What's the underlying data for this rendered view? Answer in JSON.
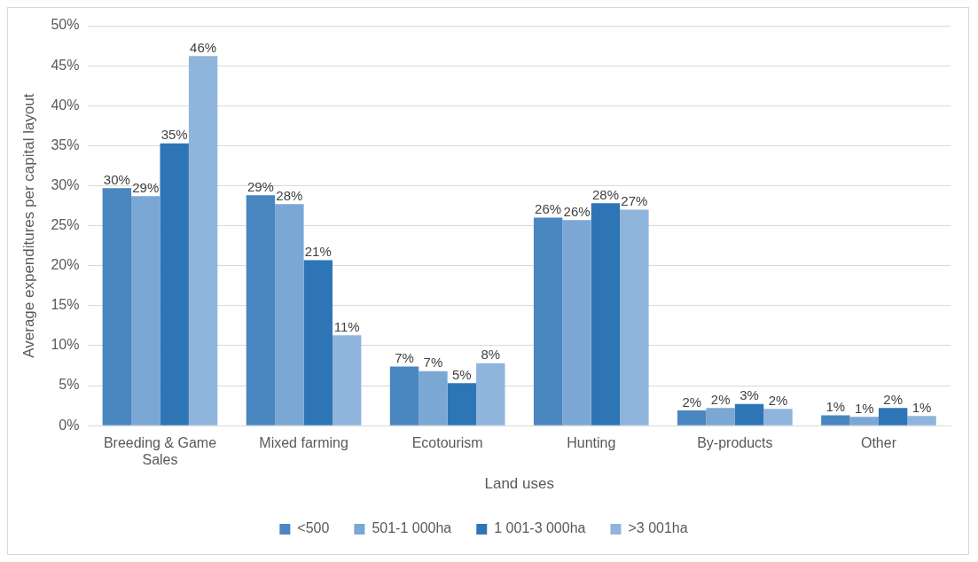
{
  "chart_data": {
    "type": "bar",
    "xlabel": "Land uses",
    "ylabel": "Average expenditures per capital layout",
    "categories": [
      "Breeding & Game Sales",
      "Mixed farming",
      "Ecotourism",
      "Hunting",
      "By-products",
      "Other"
    ],
    "series": [
      {
        "name": "<500",
        "color": "#4a86c0",
        "values": [
          29.7,
          28.8,
          7.4,
          26.0,
          1.9,
          1.3
        ],
        "value_labels": [
          "30%",
          "29%",
          "7%",
          "26%",
          "2%",
          "1%"
        ]
      },
      {
        "name": "501-1 000ha",
        "color": "#7aa7d4",
        "values": [
          28.7,
          27.7,
          6.8,
          25.7,
          2.2,
          1.1
        ],
        "value_labels": [
          "29%",
          "28%",
          "7%",
          "26%",
          "2%",
          "1%"
        ]
      },
      {
        "name": "1 001-3 000ha",
        "color": "#2e75b6",
        "values": [
          35.3,
          20.7,
          5.3,
          27.8,
          2.7,
          2.2
        ],
        "value_labels": [
          "35%",
          "21%",
          "5%",
          "28%",
          "3%",
          "2%"
        ]
      },
      {
        "name": ">3 001ha",
        "color": "#8fb5dd",
        "values": [
          46.2,
          11.3,
          7.8,
          27.0,
          2.1,
          1.2
        ],
        "value_labels": [
          "46%",
          "11%",
          "8%",
          "27%",
          "2%",
          "1%"
        ]
      }
    ],
    "ylim": [
      0,
      50
    ],
    "yticks": [
      {
        "value": 0,
        "label": "0%"
      },
      {
        "value": 5,
        "label": "5%"
      },
      {
        "value": 10,
        "label": "10%"
      },
      {
        "value": 15,
        "label": "15%"
      },
      {
        "value": 20,
        "label": "20%"
      },
      {
        "value": 25,
        "label": "25%"
      },
      {
        "value": 30,
        "label": "30%"
      },
      {
        "value": 35,
        "label": "35%"
      },
      {
        "value": 40,
        "label": "40%"
      },
      {
        "value": 45,
        "label": "45%"
      },
      {
        "value": 50,
        "label": "50%"
      }
    ],
    "grid": "y",
    "legend": "bottom"
  }
}
